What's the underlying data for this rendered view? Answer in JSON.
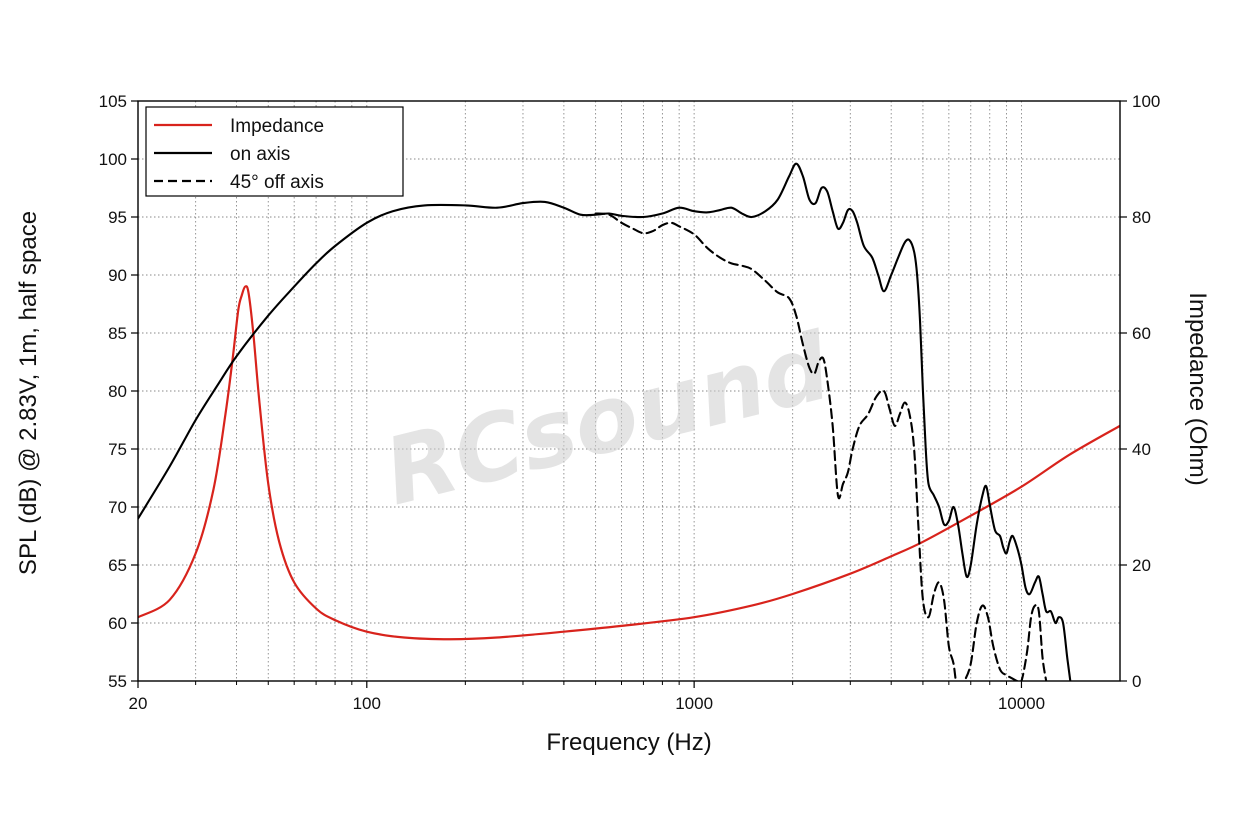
{
  "chart_data": {
    "type": "line",
    "xlabel": "Frequency (Hz)",
    "ylabel": "SPL (dB) @ 2.83V, 1m, half space",
    "y2label": "Impedance (Ohm)",
    "xscale": "log",
    "xlim": [
      20,
      20000
    ],
    "ylim": [
      55,
      105
    ],
    "y2lim": [
      0,
      100
    ],
    "x_ticks": [
      20,
      100,
      1000,
      10000
    ],
    "y_ticks": [
      55,
      60,
      65,
      70,
      75,
      80,
      85,
      90,
      95,
      100,
      105
    ],
    "y2_ticks": [
      0,
      20,
      40,
      60,
      80,
      100
    ],
    "grid": true,
    "legend_position": "top-left",
    "watermark": "RCsound",
    "colors": {
      "impedance": "#d8231c",
      "spl": "#000000"
    },
    "series": [
      {
        "name": "Impedance",
        "axis": "right",
        "style": "solid",
        "color": "#d8231c",
        "points": [
          [
            20,
            11
          ],
          [
            25,
            14
          ],
          [
            30,
            22
          ],
          [
            34,
            33
          ],
          [
            37,
            46
          ],
          [
            39,
            56
          ],
          [
            40.5,
            64
          ],
          [
            41.5,
            66.5
          ],
          [
            42.5,
            68
          ],
          [
            43.5,
            67
          ],
          [
            45,
            60
          ],
          [
            47,
            48
          ],
          [
            50,
            34
          ],
          [
            54,
            24
          ],
          [
            60,
            17
          ],
          [
            70,
            12.5
          ],
          [
            80,
            10.5
          ],
          [
            100,
            8.5
          ],
          [
            130,
            7.5
          ],
          [
            180,
            7.2
          ],
          [
            250,
            7.5
          ],
          [
            400,
            8.5
          ],
          [
            600,
            9.5
          ],
          [
            1000,
            11
          ],
          [
            1500,
            13
          ],
          [
            2000,
            15
          ],
          [
            3000,
            18.5
          ],
          [
            4000,
            21.5
          ],
          [
            5000,
            24
          ],
          [
            7000,
            28.5
          ],
          [
            10000,
            33.5
          ],
          [
            14000,
            39
          ],
          [
            20000,
            44
          ]
        ]
      },
      {
        "name": "on axis",
        "axis": "left",
        "style": "solid",
        "color": "#000000",
        "points": [
          [
            20,
            69
          ],
          [
            25,
            73.5
          ],
          [
            30,
            77.5
          ],
          [
            35,
            80.5
          ],
          [
            40,
            83
          ],
          [
            50,
            86.5
          ],
          [
            60,
            89
          ],
          [
            70,
            91
          ],
          [
            80,
            92.5
          ],
          [
            100,
            94.5
          ],
          [
            120,
            95.5
          ],
          [
            150,
            96
          ],
          [
            200,
            96
          ],
          [
            250,
            95.8
          ],
          [
            300,
            96.2
          ],
          [
            350,
            96.3
          ],
          [
            400,
            95.8
          ],
          [
            450,
            95.2
          ],
          [
            500,
            95.2
          ],
          [
            550,
            95.3
          ],
          [
            600,
            95.1
          ],
          [
            700,
            95
          ],
          [
            800,
            95.3
          ],
          [
            900,
            95.8
          ],
          [
            1000,
            95.5
          ],
          [
            1100,
            95.4
          ],
          [
            1200,
            95.6
          ],
          [
            1300,
            95.8
          ],
          [
            1400,
            95.3
          ],
          [
            1500,
            95
          ],
          [
            1650,
            95.5
          ],
          [
            1800,
            96.5
          ],
          [
            1950,
            98.5
          ],
          [
            2050,
            99.6
          ],
          [
            2150,
            98.5
          ],
          [
            2250,
            96.5
          ],
          [
            2350,
            96.2
          ],
          [
            2450,
            97.5
          ],
          [
            2550,
            97.2
          ],
          [
            2650,
            95.5
          ],
          [
            2750,
            94
          ],
          [
            2850,
            94.5
          ],
          [
            2950,
            95.6
          ],
          [
            3050,
            95.5
          ],
          [
            3150,
            94.5
          ],
          [
            3300,
            92.5
          ],
          [
            3500,
            91.5
          ],
          [
            3650,
            90
          ],
          [
            3800,
            88.6
          ],
          [
            4000,
            90
          ],
          [
            4200,
            91.5
          ],
          [
            4400,
            92.8
          ],
          [
            4550,
            93
          ],
          [
            4700,
            92
          ],
          [
            4800,
            90
          ],
          [
            4900,
            86
          ],
          [
            5000,
            80
          ],
          [
            5100,
            75
          ],
          [
            5200,
            72
          ],
          [
            5400,
            71
          ],
          [
            5600,
            70
          ],
          [
            5800,
            68.5
          ],
          [
            6000,
            68.8
          ],
          [
            6200,
            70
          ],
          [
            6400,
            68.5
          ],
          [
            6600,
            66
          ],
          [
            6800,
            64
          ],
          [
            7000,
            65
          ],
          [
            7300,
            68.5
          ],
          [
            7600,
            71
          ],
          [
            7800,
            71.8
          ],
          [
            8000,
            70.2
          ],
          [
            8300,
            68
          ],
          [
            8600,
            67.5
          ],
          [
            8800,
            66.5
          ],
          [
            9000,
            66
          ],
          [
            9200,
            67
          ],
          [
            9400,
            67.5
          ],
          [
            9700,
            66.5
          ],
          [
            10000,
            65
          ],
          [
            10300,
            63
          ],
          [
            10600,
            62.5
          ],
          [
            11000,
            63.5
          ],
          [
            11300,
            64
          ],
          [
            11600,
            62.5
          ],
          [
            11900,
            61
          ],
          [
            12300,
            61
          ],
          [
            12700,
            60
          ],
          [
            13000,
            60.5
          ],
          [
            13400,
            60
          ],
          [
            13800,
            57
          ],
          [
            14100,
            55
          ]
        ]
      },
      {
        "name": "45° off axis",
        "axis": "left",
        "style": "dashed",
        "color": "#000000",
        "points": [
          [
            500,
            95.3
          ],
          [
            550,
            95.2
          ],
          [
            600,
            94.5
          ],
          [
            650,
            94
          ],
          [
            700,
            93.6
          ],
          [
            750,
            93.8
          ],
          [
            800,
            94.3
          ],
          [
            850,
            94.5
          ],
          [
            900,
            94.2
          ],
          [
            1000,
            93.5
          ],
          [
            1100,
            92.3
          ],
          [
            1200,
            91.5
          ],
          [
            1300,
            91
          ],
          [
            1400,
            90.8
          ],
          [
            1500,
            90.5
          ],
          [
            1650,
            89.5
          ],
          [
            1800,
            88.5
          ],
          [
            1950,
            88
          ],
          [
            2050,
            86.5
          ],
          [
            2150,
            84
          ],
          [
            2250,
            82
          ],
          [
            2330,
            81.5
          ],
          [
            2400,
            82.5
          ],
          [
            2480,
            82.8
          ],
          [
            2550,
            81
          ],
          [
            2650,
            77
          ],
          [
            2750,
            71
          ],
          [
            2850,
            72
          ],
          [
            2950,
            73
          ],
          [
            3050,
            75
          ],
          [
            3200,
            77
          ],
          [
            3400,
            78
          ],
          [
            3600,
            79.5
          ],
          [
            3800,
            80
          ],
          [
            3950,
            78.5
          ],
          [
            4100,
            77
          ],
          [
            4250,
            78
          ],
          [
            4400,
            79
          ],
          [
            4550,
            78
          ],
          [
            4700,
            75
          ],
          [
            4850,
            68
          ],
          [
            5000,
            62
          ],
          [
            5200,
            60.5
          ],
          [
            5400,
            62.5
          ],
          [
            5600,
            63.5
          ],
          [
            5800,
            62
          ],
          [
            6000,
            58
          ],
          [
            6200,
            56.5
          ],
          [
            6400,
            54
          ],
          [
            6700,
            55
          ],
          [
            7000,
            56.5
          ],
          [
            7300,
            60
          ],
          [
            7600,
            61.5
          ],
          [
            7900,
            60.5
          ],
          [
            8200,
            58
          ],
          [
            8600,
            56
          ],
          [
            9000,
            55.5
          ],
          [
            9400,
            55.2
          ],
          [
            9700,
            55
          ],
          [
            10000,
            55
          ],
          [
            10400,
            57.5
          ],
          [
            10700,
            60.5
          ],
          [
            11000,
            61.5
          ],
          [
            11300,
            61
          ],
          [
            11600,
            57
          ],
          [
            11900,
            55
          ]
        ]
      }
    ]
  }
}
